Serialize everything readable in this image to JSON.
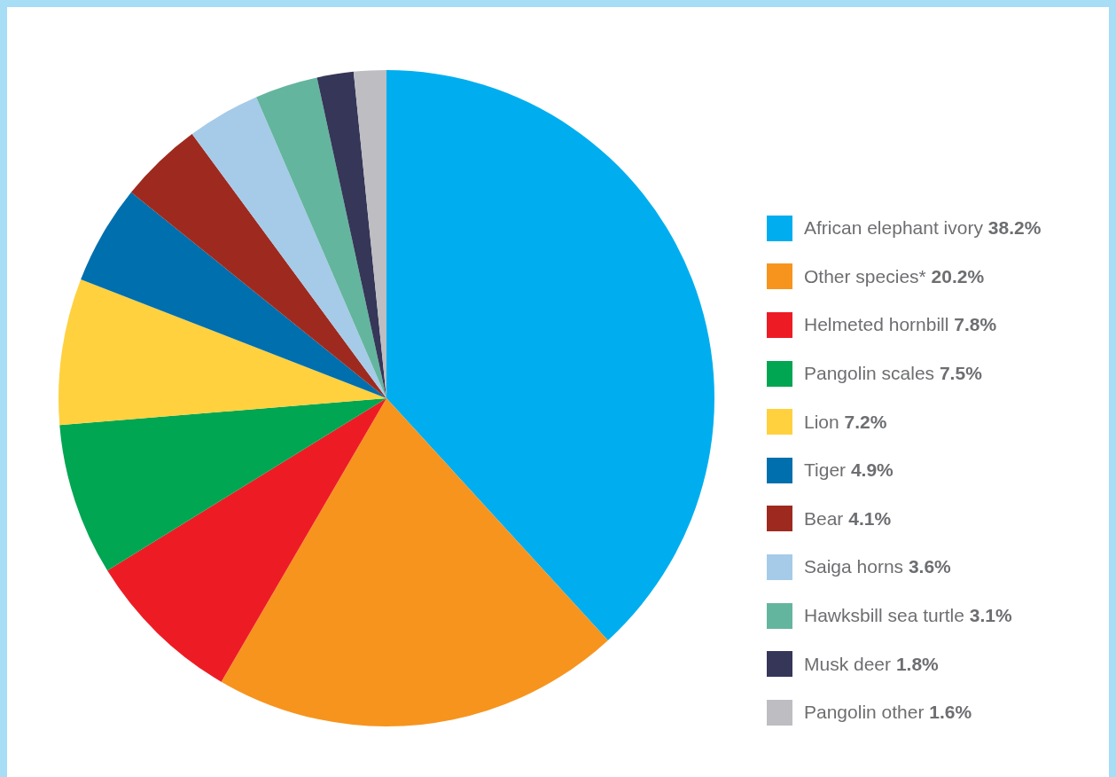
{
  "chart_data": {
    "type": "pie",
    "legend": "right",
    "categories": [
      "African elephant ivory",
      "Other species*",
      "Helmeted hornbill",
      "Pangolin scales",
      "Lion",
      "Tiger",
      "Bear",
      "Saiga horns",
      "Hawksbill sea turtle",
      "Musk deer",
      "Pangolin other"
    ],
    "values": [
      38.2,
      20.2,
      7.8,
      7.5,
      7.2,
      4.9,
      4.1,
      3.6,
      3.1,
      1.8,
      1.6
    ],
    "value_labels": [
      "38.2%",
      "20.2%",
      "7.8%",
      "7.5%",
      "7.2%",
      "4.9%",
      "4.1%",
      "3.6%",
      "3.1%",
      "1.8%",
      "1.6%"
    ],
    "colors": [
      "#00aeef",
      "#f7941d",
      "#ed1c24",
      "#00a651",
      "#ffd13f",
      "#006fad",
      "#9e2a1f",
      "#a5cbe8",
      "#64b59e",
      "#353658",
      "#bdbdc2"
    ]
  }
}
